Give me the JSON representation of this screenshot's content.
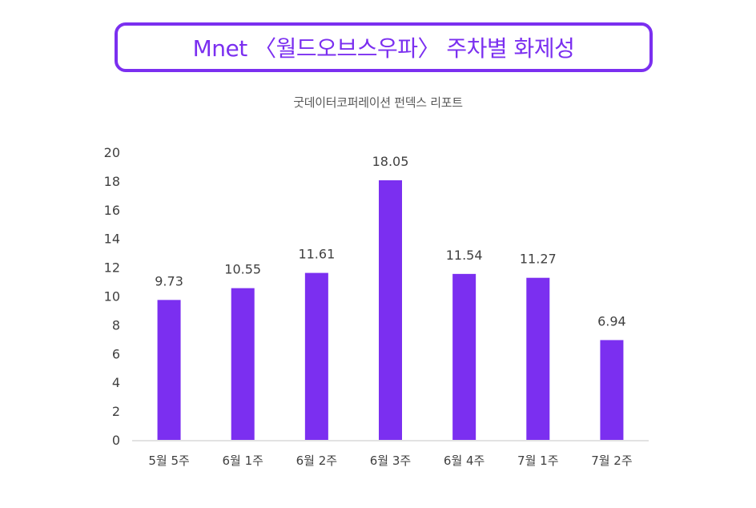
{
  "header": {
    "title": "Mnet 〈월드오브스우파〉 주차별 화제성",
    "subtitle": "굿데이터코퍼레이션 펀덱스 리포트"
  },
  "colors": {
    "accent": "#7b2ff0",
    "bar": "#7b2ff0",
    "axis_text": "#404040",
    "baseline": "#d9d9d9"
  },
  "chart_data": {
    "type": "bar",
    "title": "Mnet 〈월드오브스우파〉 주차별 화제성",
    "subtitle": "굿데이터코퍼레이션 펀덱스 리포트",
    "categories": [
      "5월 5주",
      "6월 1주",
      "6월 2주",
      "6월 3주",
      "6월 4주",
      "7월 1주",
      "7월 2주"
    ],
    "values": [
      9.73,
      10.55,
      11.61,
      18.05,
      11.54,
      11.27,
      6.94
    ],
    "value_labels": [
      "9.73",
      "10.55",
      "11.61",
      "18.05",
      "11.54",
      "11.27",
      "6.94"
    ],
    "y_ticks": [
      "0",
      "2",
      "4",
      "6",
      "8",
      "10",
      "12",
      "14",
      "16",
      "18",
      "20"
    ],
    "ylim": [
      0,
      20
    ],
    "xlabel": "",
    "ylabel": "",
    "grid": false,
    "legend": false
  }
}
